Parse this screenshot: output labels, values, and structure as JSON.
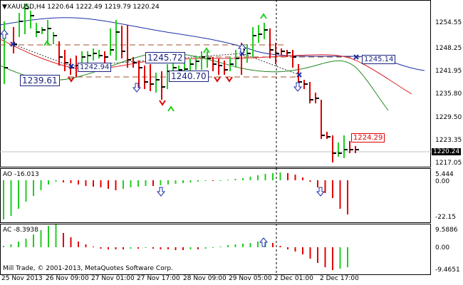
{
  "header": {
    "symbol_label": "XAUUSD,H4",
    "ohlc": "1220.64 1222.49 1219.79 1220.24"
  },
  "price_axis": [
    "1254.55",
    "1248.25",
    "1241.95",
    "1235.80",
    "1229.50",
    "1223.35",
    "1217.05"
  ],
  "current_price": "1220.24",
  "price_labels": [
    "1245.72",
    "1239.61",
    "1242.94",
    "1240.70",
    "1245.14",
    "1224.29"
  ],
  "ao": {
    "title": "AO -16.013",
    "axis": [
      "5.444",
      "0.00",
      "-22.15"
    ]
  },
  "ac": {
    "title": "AC -8.3938",
    "axis": [
      "9.5886",
      "0.00",
      "-9.4651"
    ]
  },
  "copyright": "Mill Trade, © 2001-2013, MetaQuotes Software Corp.",
  "time_axis": [
    "25 Nov 2013",
    "26 Nov 09:00",
    "27 Nov 01:00",
    "27 Nov 17:00",
    "28 Nov 09:00",
    "29 Nov 05:00",
    "2 Dec 01:00",
    "2 Dec 17:00"
  ],
  "colors": {
    "up": "#22cc22",
    "down": "#e00000",
    "blue_line": "#1e2fa8",
    "red_line": "#dd2222",
    "green_line": "#228822",
    "fractal_up": "#22cc22",
    "fractal_down": "#e00000"
  },
  "icons": {
    "fractal_up": "up-chevron-icon",
    "fractal_down": "down-chevron-icon",
    "signal_up": "up-arrow-icon",
    "signal_down": "down-arrow-icon"
  }
}
